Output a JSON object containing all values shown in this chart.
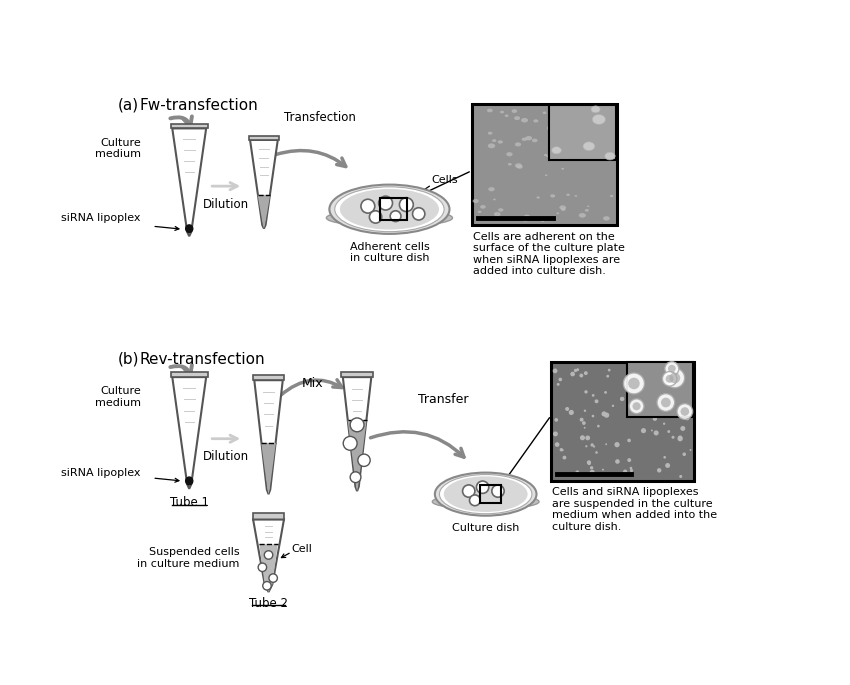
{
  "panel_a_label": "(a)",
  "panel_b_label": "(b)",
  "fw_transfection": "Fw-transfection",
  "rev_transfection": "Rev-transfection",
  "culture_medium": "Culture\nmedium",
  "sirna_lipoplex": "siRNA lipoplex",
  "dilution": "Dilution",
  "transfection": "Transfection",
  "cells_label": "Cells",
  "adherent_cells": "Adherent cells\nin culture dish",
  "fw_caption": "Cells are adherent on the\nsurface of the culture plate\nwhen siRNA lipoplexes are\nadded into culture dish.",
  "tube1": "Tube 1",
  "tube2": "Tube 2",
  "mix": "Mix",
  "transfer": "Transfer",
  "suspended_cells": "Suspended cells\nin culture medium",
  "cell_label": "Cell",
  "culture_dish": "Culture dish",
  "rev_caption": "Cells and siRNA lipoplexes\nare suspended in the culture\nmedium when added into the\nculture dish.",
  "bg_color": "#ffffff",
  "tube_outline": "#555555",
  "arrow_gray": "#888888",
  "arrow_light": "#bbbbbb",
  "text_color": "#000000"
}
